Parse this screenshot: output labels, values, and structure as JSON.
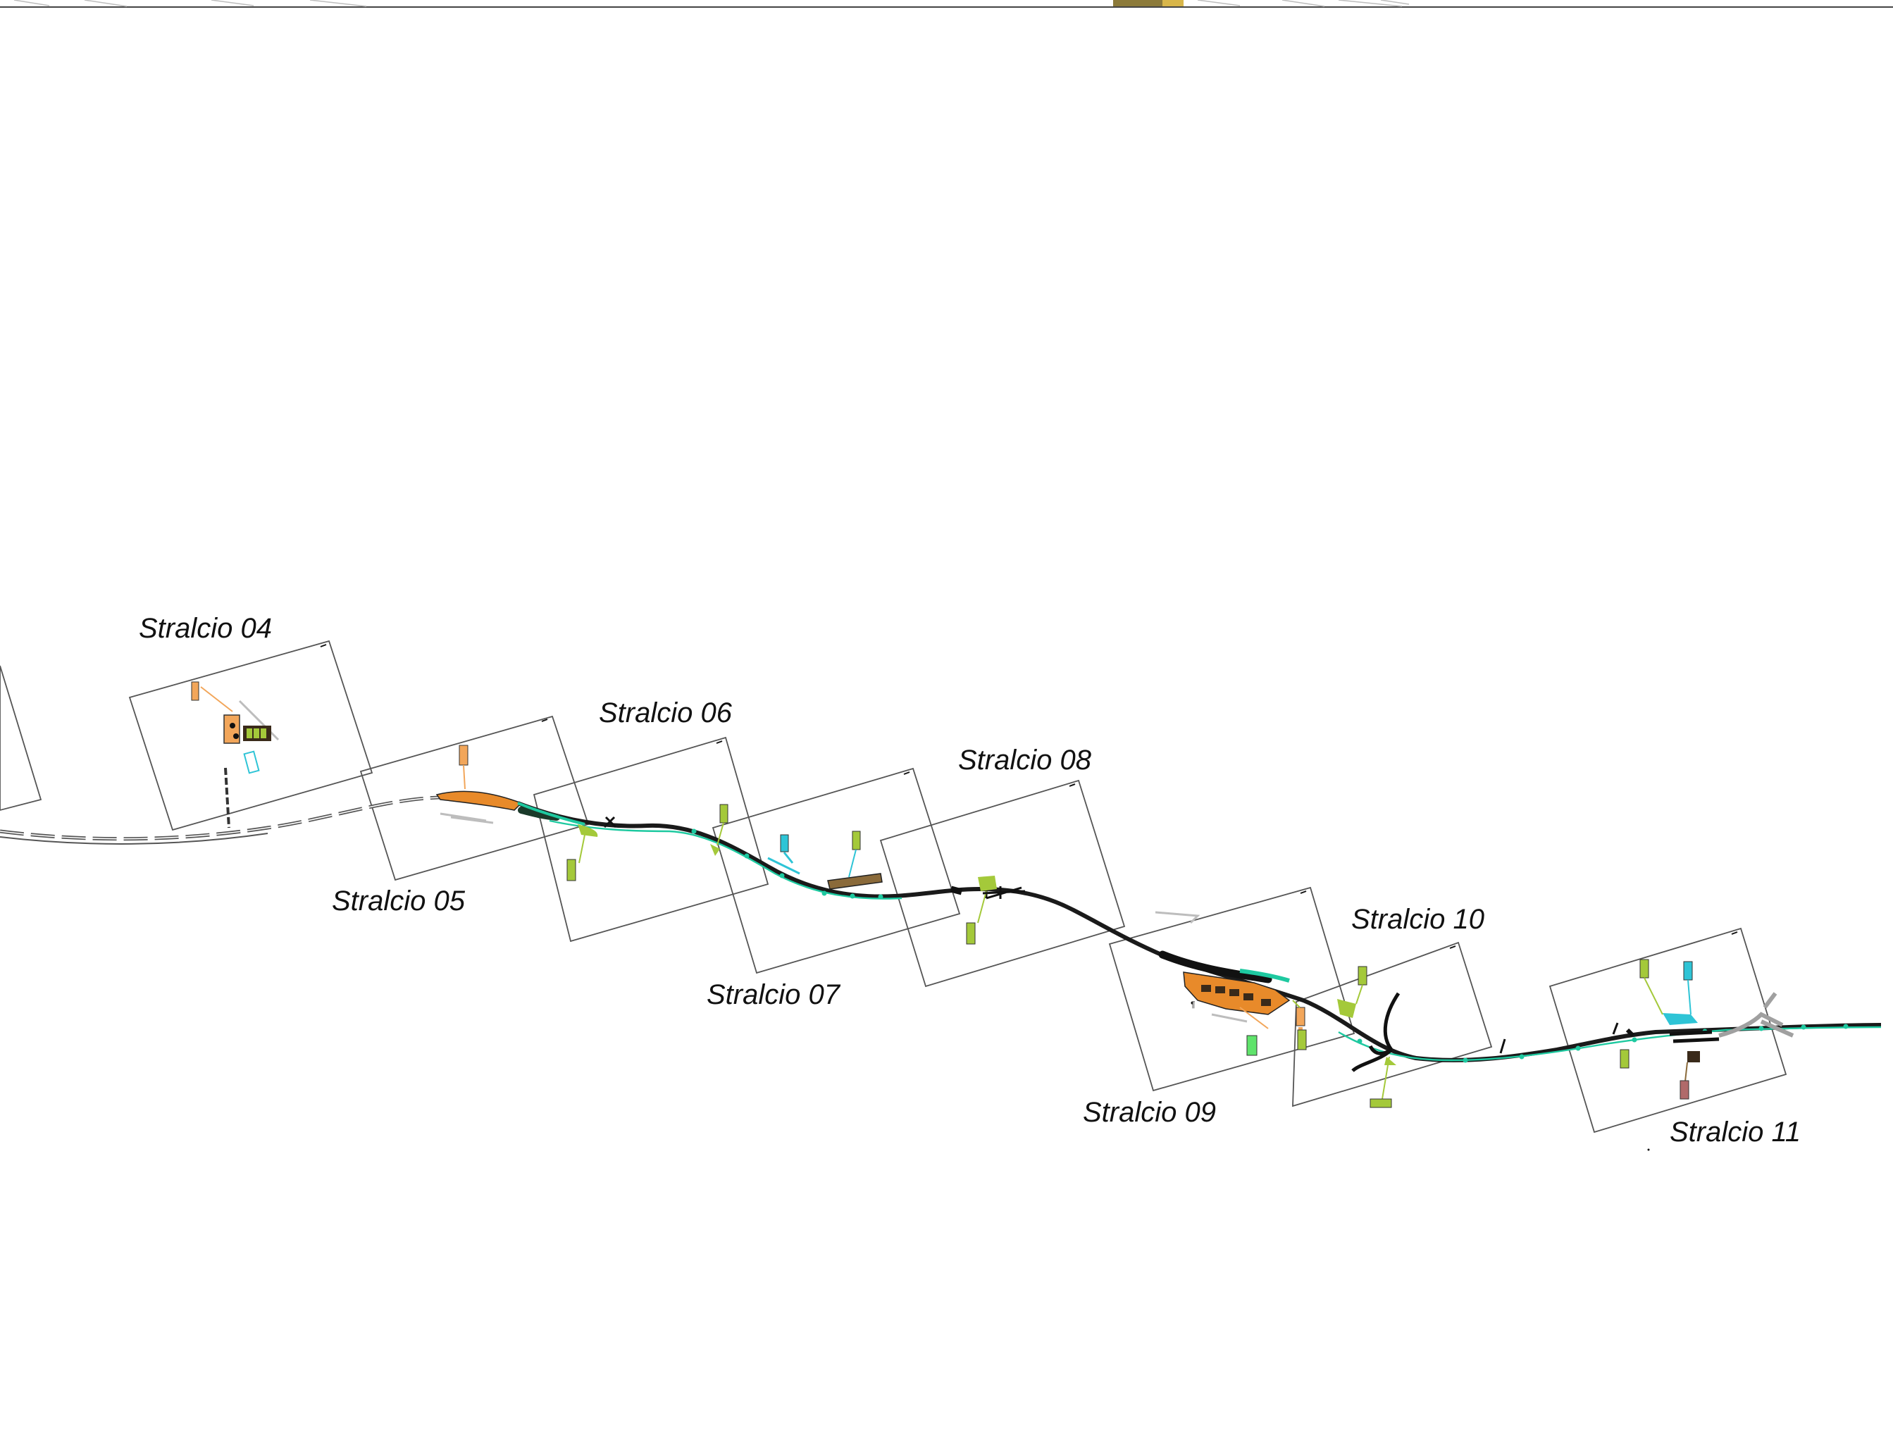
{
  "map": {
    "title": "",
    "stralci": [
      {
        "id": "04",
        "label": "Stralcio 04"
      },
      {
        "id": "05",
        "label": "Stralcio 05"
      },
      {
        "id": "06",
        "label": "Stralcio 06"
      },
      {
        "id": "07",
        "label": "Stralcio 07"
      },
      {
        "id": "08",
        "label": "Stralcio 08"
      },
      {
        "id": "09",
        "label": "Stralcio 09"
      },
      {
        "id": "10",
        "label": "Stralcio 10"
      },
      {
        "id": "11",
        "label": "Stralcio 11"
      }
    ],
    "colors": {
      "rail": "#1a1a1a",
      "rail_existing": "#555555",
      "rail_new": "#1ec9a0",
      "orange_area": "#f2a65a",
      "lime_area": "#a4c93a",
      "cyan_area": "#2ec4d6",
      "green_area": "#5fe36b",
      "brown_area": "#8a6a3a",
      "frame": "#555555"
    }
  }
}
